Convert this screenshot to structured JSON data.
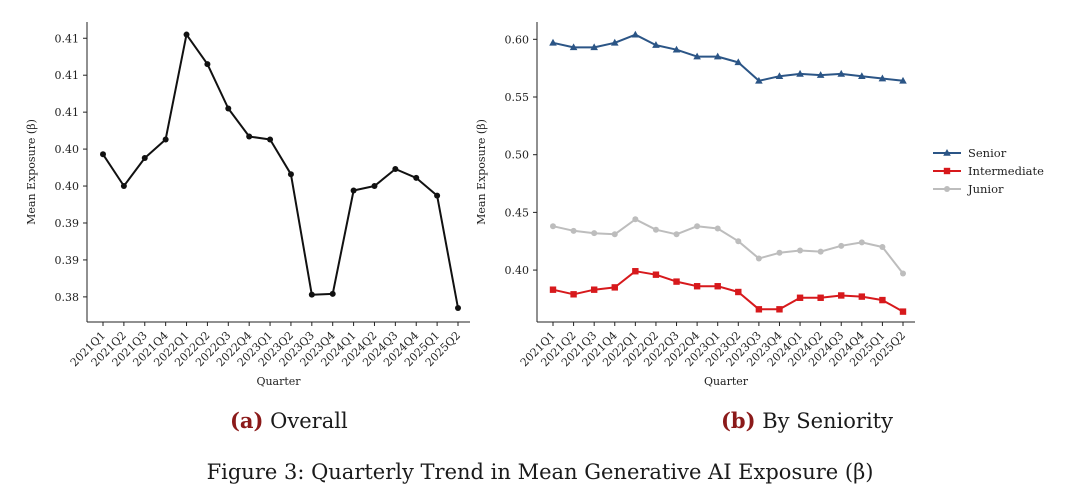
{
  "figure_caption": "Figure 3: Quarterly Trend in Mean Generative AI Exposure (β)",
  "panels": [
    {
      "tag": "(a)",
      "title": "Overall"
    },
    {
      "tag": "(b)",
      "title": "By Seniority"
    }
  ],
  "chart_data": [
    {
      "type": "line",
      "title": "Overall",
      "xlabel": "Quarter",
      "ylabel": "Mean Exposure (β)",
      "categories": [
        "2021Q1",
        "2021Q2",
        "2021Q3",
        "2021Q4",
        "2022Q1",
        "2022Q2",
        "2022Q3",
        "2022Q4",
        "2023Q1",
        "2023Q2",
        "2023Q3",
        "2023Q4",
        "2024Q1",
        "2024Q2",
        "2024Q3",
        "2024Q4",
        "2025Q1",
        "2025Q2"
      ],
      "yticks": [
        0.38,
        0.385,
        0.39,
        0.395,
        0.4,
        0.405,
        0.41,
        0.415
      ],
      "ytick_labels": [
        "0.38",
        "0.39",
        "0.39",
        "0.40",
        "0.40",
        "0.41",
        "0.41",
        "0.41"
      ],
      "ylim": [
        0.3766,
        0.4172
      ],
      "series": [
        {
          "values": [
            0.3993,
            0.395,
            0.3988,
            0.4013,
            0.4155,
            0.4115,
            0.4055,
            0.4017,
            0.4013,
            0.3966,
            0.3803,
            0.3804,
            0.3944,
            0.395,
            0.3973,
            0.3961,
            0.3937,
            0.3785
          ],
          "color": "#111111",
          "marker": "circle"
        }
      ],
      "grid": false
    },
    {
      "type": "line",
      "title": "By Seniority",
      "xlabel": "Quarter",
      "ylabel": "Mean Exposure (β)",
      "categories": [
        "2021Q1",
        "2021Q2",
        "2021Q3",
        "2021Q4",
        "2022Q1",
        "2022Q2",
        "2022Q3",
        "2022Q4",
        "2023Q1",
        "2023Q2",
        "2023Q3",
        "2023Q4",
        "2024Q1",
        "2024Q2",
        "2024Q3",
        "2024Q4",
        "2025Q1",
        "2025Q2"
      ],
      "yticks": [
        0.4,
        0.45,
        0.5,
        0.55,
        0.6
      ],
      "ytick_labels": [
        "0.40",
        "0.45",
        "0.50",
        "0.55",
        "0.60"
      ],
      "ylim": [
        0.355,
        0.615
      ],
      "legend_position": "right",
      "series": [
        {
          "name": "Senior",
          "color": "#2b5586",
          "marker": "triangle",
          "values": [
            0.597,
            0.593,
            0.593,
            0.597,
            0.604,
            0.595,
            0.591,
            0.585,
            0.585,
            0.58,
            0.564,
            0.568,
            0.57,
            0.569,
            0.57,
            0.568,
            0.566,
            0.564
          ]
        },
        {
          "name": "Intermediate",
          "color": "#d7191c",
          "marker": "square",
          "values": [
            0.383,
            0.379,
            0.383,
            0.385,
            0.399,
            0.396,
            0.39,
            0.386,
            0.386,
            0.381,
            0.366,
            0.366,
            0.376,
            0.376,
            0.378,
            0.377,
            0.374,
            0.364
          ]
        },
        {
          "name": "Junior",
          "color": "#bdbdbd",
          "marker": "circle",
          "values": [
            0.438,
            0.434,
            0.432,
            0.431,
            0.444,
            0.435,
            0.431,
            0.438,
            0.436,
            0.425,
            0.41,
            0.415,
            0.417,
            0.416,
            0.421,
            0.424,
            0.42,
            0.397
          ]
        }
      ],
      "grid": false
    }
  ]
}
